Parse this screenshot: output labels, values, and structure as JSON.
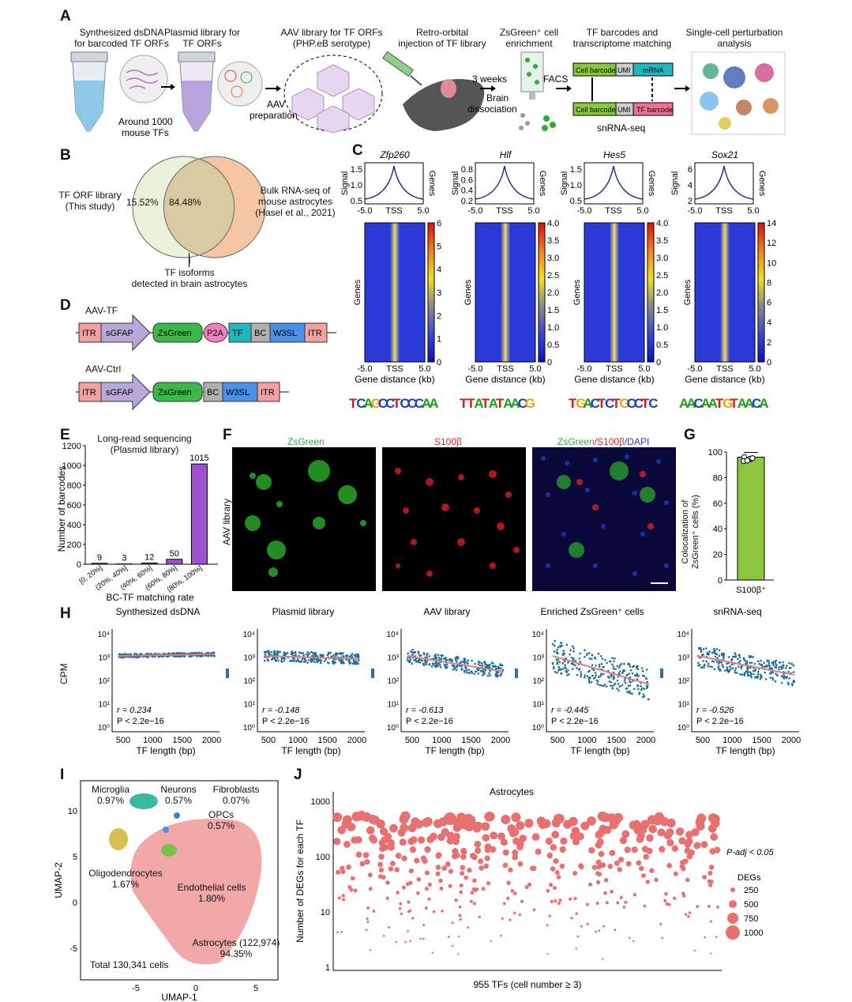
{
  "panelA": {
    "letter": "A",
    "step1": "Synthesized dsDNA\nfor barcoded TF ORFs",
    "step1_sub": "Around 1000\nmouse TFs",
    "step2": "Plasmid library for\nTF ORFs",
    "step3": "AAV library for TF ORFs\n(PHP.eB serotype)",
    "step3_sub": "AAV\npreparation",
    "step4": "Retro-orbital\ninjection of TF library",
    "step4_sub1": "3 weeks",
    "step4_sub2": "Brain\ndissociation",
    "step5": "ZsGreen⁺ cell\nenrichment",
    "step5_sub": "FACS",
    "step6": "TF barcodes and\ntranscriptome matching",
    "step6_cb1": "Cell barcode",
    "step6_umi1": "UMI",
    "step6_mrna": "mRNA",
    "step6_cb2": "Cell barcode",
    "step6_umi2": "UMI",
    "step6_tfbc": "TF barcode",
    "step6_sub": "snRNA-seq",
    "step7": "Single-cell perturbation\nanalysis"
  },
  "panelB": {
    "letter": "B",
    "left_label": "TF ORF library\n(This study)",
    "right_label": "Bulk RNA-seq of\nmouse astrocytes\n(Hasel et al., 2021)",
    "left_pct": "15.52%",
    "overlap_pct": "84.48%",
    "bottom_label": "TF isoforms\ndetected in brain astrocytes",
    "colors": {
      "left": "#e9f0d9",
      "right": "#f6c7a7",
      "overlap": "#d6c9a0"
    }
  },
  "panelC": {
    "letter": "C",
    "genes": [
      {
        "name": "Zfp260",
        "yticks": [
          "1.5",
          "1.0",
          "0.5"
        ],
        "cbar_ticks": [
          "6",
          "5",
          "4",
          "3",
          "2",
          "1",
          "0"
        ]
      },
      {
        "name": "Hlf",
        "yticks": [
          "0.8",
          "0.6",
          "0.4",
          "0.2"
        ],
        "cbar_ticks": [
          "4.0",
          "3.5",
          "3.0",
          "2.5",
          "2.0",
          "1.5",
          "1.0",
          "0.5",
          "0"
        ]
      },
      {
        "name": "Hes5",
        "yticks": [
          "1.5",
          "1.0",
          "0.5"
        ],
        "cbar_ticks": [
          "4.0",
          "3.5",
          "3.0",
          "2.5",
          "2.0",
          "1.5",
          "1.0",
          "0.5",
          "0"
        ]
      },
      {
        "name": "Sox21",
        "yticks": [
          "6",
          "4",
          "2"
        ],
        "cbar_ticks": [
          "14",
          "12",
          "10",
          "8",
          "6",
          "4",
          "2",
          "0"
        ]
      }
    ],
    "signal_label": "Signal",
    "genes_label": "Genes",
    "xticks": [
      "-5.0",
      "TSS",
      "5.0"
    ],
    "xlabel": "Gene distance (kb)",
    "motifs": [
      "TCAGCCTCCCAA",
      "TTATATAACG",
      "TGACTCTGCCTC",
      "AACAATGTAACA"
    ]
  },
  "panelD": {
    "letter": "D",
    "tf_title": "AAV-TF",
    "tf_parts": [
      "ITR",
      "sGFAP",
      "ZsGreen",
      "P2A",
      "TF",
      "BC",
      "W3SL",
      "ITR"
    ],
    "ctrl_title": "AAV-Ctrl",
    "ctrl_parts": [
      "ITR",
      "sGFAP",
      "ZsGreen",
      "BC",
      "W3SL",
      "ITR"
    ]
  },
  "panelE": {
    "letter": "E",
    "title": "Long-read sequencing\n(Plasmid library)",
    "ylabel": "Number of barcodes",
    "xlabel": "BC-TF matching rate",
    "yticks": [
      "1200",
      "1000",
      "800",
      "600",
      "400",
      "200",
      "0"
    ]
  },
  "panelF": {
    "letter": "F",
    "ch1": "ZsGreen",
    "ch2": "S100β",
    "ch3a": "ZsGreen",
    "ch3b": "/S100β",
    "ch3c": "/DAPI",
    "side": "AAV library"
  },
  "panelG": {
    "letter": "G",
    "ylabel": "Colocalization of\nZsGreen⁺ cells (%)",
    "xlabel": "S100β⁺",
    "yticks": [
      "100",
      "80",
      "60",
      "40",
      "20",
      "0"
    ],
    "value_pct": 96
  },
  "panelH": {
    "letter": "H",
    "ylabel": "CPM",
    "xlabel": "TF length (bp)",
    "xticks": [
      "500",
      "1000",
      "1500",
      "2000"
    ],
    "yticks": [
      "10⁴",
      "10³",
      "10²",
      "10¹",
      "10⁰"
    ],
    "panels": [
      {
        "title": "Synthesized dsDNA",
        "r": "r = 0.234",
        "p": "P < 2.2e−16"
      },
      {
        "title": "Plasmid library",
        "r": "r = -0.148",
        "p": "P < 2.2e−16"
      },
      {
        "title": "AAV library",
        "r": "r = -0.613",
        "p": "P < 2.2e−16"
      },
      {
        "title": "Enriched ZsGreen⁺ cells",
        "r": "r = -0.445",
        "p": "P < 2.2e−16"
      },
      {
        "title": "snRNA-seq",
        "r": "r = -0.526",
        "p": "P < 2.2e−16"
      }
    ]
  },
  "panelI": {
    "letter": "I",
    "labels": {
      "microglia": "Microglia\n0.97%",
      "neurons": "Neurons\n0.57%",
      "fibroblasts": "Fibroblasts\n0.07%",
      "opcs": "OPCs\n0.57%",
      "oligo": "Oligodendrocytes\n1.67%",
      "endo": "Endothelial cells\n1.80%",
      "astro": "Astrocytes (122,974)\n94.35%"
    },
    "total": "Total 130,341 cells",
    "xlabel": "UMAP-1",
    "ylabel": "UMAP-2",
    "xticks": [
      "-5",
      "0",
      "5"
    ],
    "yticks": [
      "10",
      "5",
      "0",
      "-5"
    ]
  },
  "panelJ": {
    "letter": "J",
    "title": "Astrocytes",
    "ylabel": "Number of DEGs for each TF",
    "xlabel": "955 TFs (cell number ≥ 3)",
    "yticks": [
      "1000",
      "100",
      "10",
      "1"
    ],
    "legend_title": "P-adj < 0.05",
    "legend_sub": "DEGs",
    "legend_items": [
      "250",
      "500",
      "750",
      "1000"
    ]
  },
  "chart_data": [
    {
      "type": "bar",
      "panel": "E",
      "title": "Long-read sequencing (Plasmid library)",
      "categories": [
        "[0, 20%]",
        "(20%, 40%]",
        "(40%, 60%]",
        "(60%, 80%]",
        "(80%, 100%]"
      ],
      "values": [
        9,
        3,
        12,
        50,
        1015
      ],
      "xlabel": "BC-TF matching rate",
      "ylabel": "Number of barcodes",
      "ylim": [
        0,
        1200
      ],
      "color": "#a050d0"
    },
    {
      "type": "bar",
      "panel": "G",
      "categories": [
        "S100β⁺"
      ],
      "values": [
        96
      ],
      "ylabel": "Colocalization of ZsGreen⁺ cells (%)",
      "ylim": [
        0,
        100
      ],
      "color": "#8cc63f"
    }
  ]
}
